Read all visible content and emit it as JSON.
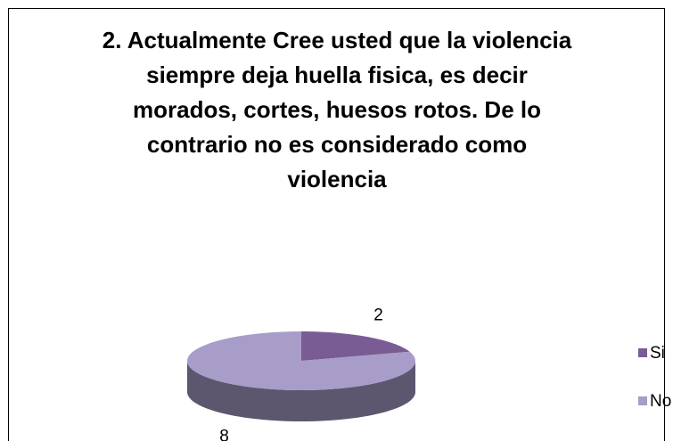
{
  "chart_data": {
    "type": "pie3d",
    "title": "2. Actualmente Cree usted que la violencia siempre deja huella fisica, es decir morados, cortes, huesos rotos. De lo contrario no es considerado como violencia",
    "categories": [
      "Si",
      "No"
    ],
    "values": [
      2,
      8
    ],
    "colors": [
      "#7a5c95",
      "#a89cc8"
    ],
    "legend": "right"
  }
}
